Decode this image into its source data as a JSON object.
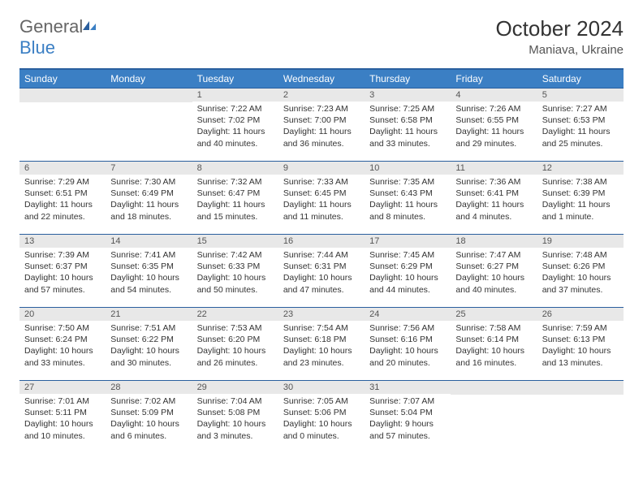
{
  "brand": {
    "part1": "General",
    "part2": "Blue"
  },
  "title": "October 2024",
  "location": "Maniava, Ukraine",
  "colors": {
    "header_bg": "#3b7fc4",
    "header_border": "#2a5f9e",
    "daynum_bg": "#e8e8e8",
    "text": "#333333",
    "muted": "#555555"
  },
  "weekdays": [
    "Sunday",
    "Monday",
    "Tuesday",
    "Wednesday",
    "Thursday",
    "Friday",
    "Saturday"
  ],
  "weeks": [
    [
      null,
      null,
      {
        "n": "1",
        "sr": "7:22 AM",
        "ss": "7:02 PM",
        "dl": "11 hours and 40 minutes."
      },
      {
        "n": "2",
        "sr": "7:23 AM",
        "ss": "7:00 PM",
        "dl": "11 hours and 36 minutes."
      },
      {
        "n": "3",
        "sr": "7:25 AM",
        "ss": "6:58 PM",
        "dl": "11 hours and 33 minutes."
      },
      {
        "n": "4",
        "sr": "7:26 AM",
        "ss": "6:55 PM",
        "dl": "11 hours and 29 minutes."
      },
      {
        "n": "5",
        "sr": "7:27 AM",
        "ss": "6:53 PM",
        "dl": "11 hours and 25 minutes."
      }
    ],
    [
      {
        "n": "6",
        "sr": "7:29 AM",
        "ss": "6:51 PM",
        "dl": "11 hours and 22 minutes."
      },
      {
        "n": "7",
        "sr": "7:30 AM",
        "ss": "6:49 PM",
        "dl": "11 hours and 18 minutes."
      },
      {
        "n": "8",
        "sr": "7:32 AM",
        "ss": "6:47 PM",
        "dl": "11 hours and 15 minutes."
      },
      {
        "n": "9",
        "sr": "7:33 AM",
        "ss": "6:45 PM",
        "dl": "11 hours and 11 minutes."
      },
      {
        "n": "10",
        "sr": "7:35 AM",
        "ss": "6:43 PM",
        "dl": "11 hours and 8 minutes."
      },
      {
        "n": "11",
        "sr": "7:36 AM",
        "ss": "6:41 PM",
        "dl": "11 hours and 4 minutes."
      },
      {
        "n": "12",
        "sr": "7:38 AM",
        "ss": "6:39 PM",
        "dl": "11 hours and 1 minute."
      }
    ],
    [
      {
        "n": "13",
        "sr": "7:39 AM",
        "ss": "6:37 PM",
        "dl": "10 hours and 57 minutes."
      },
      {
        "n": "14",
        "sr": "7:41 AM",
        "ss": "6:35 PM",
        "dl": "10 hours and 54 minutes."
      },
      {
        "n": "15",
        "sr": "7:42 AM",
        "ss": "6:33 PM",
        "dl": "10 hours and 50 minutes."
      },
      {
        "n": "16",
        "sr": "7:44 AM",
        "ss": "6:31 PM",
        "dl": "10 hours and 47 minutes."
      },
      {
        "n": "17",
        "sr": "7:45 AM",
        "ss": "6:29 PM",
        "dl": "10 hours and 44 minutes."
      },
      {
        "n": "18",
        "sr": "7:47 AM",
        "ss": "6:27 PM",
        "dl": "10 hours and 40 minutes."
      },
      {
        "n": "19",
        "sr": "7:48 AM",
        "ss": "6:26 PM",
        "dl": "10 hours and 37 minutes."
      }
    ],
    [
      {
        "n": "20",
        "sr": "7:50 AM",
        "ss": "6:24 PM",
        "dl": "10 hours and 33 minutes."
      },
      {
        "n": "21",
        "sr": "7:51 AM",
        "ss": "6:22 PM",
        "dl": "10 hours and 30 minutes."
      },
      {
        "n": "22",
        "sr": "7:53 AM",
        "ss": "6:20 PM",
        "dl": "10 hours and 26 minutes."
      },
      {
        "n": "23",
        "sr": "7:54 AM",
        "ss": "6:18 PM",
        "dl": "10 hours and 23 minutes."
      },
      {
        "n": "24",
        "sr": "7:56 AM",
        "ss": "6:16 PM",
        "dl": "10 hours and 20 minutes."
      },
      {
        "n": "25",
        "sr": "7:58 AM",
        "ss": "6:14 PM",
        "dl": "10 hours and 16 minutes."
      },
      {
        "n": "26",
        "sr": "7:59 AM",
        "ss": "6:13 PM",
        "dl": "10 hours and 13 minutes."
      }
    ],
    [
      {
        "n": "27",
        "sr": "7:01 AM",
        "ss": "5:11 PM",
        "dl": "10 hours and 10 minutes."
      },
      {
        "n": "28",
        "sr": "7:02 AM",
        "ss": "5:09 PM",
        "dl": "10 hours and 6 minutes."
      },
      {
        "n": "29",
        "sr": "7:04 AM",
        "ss": "5:08 PM",
        "dl": "10 hours and 3 minutes."
      },
      {
        "n": "30",
        "sr": "7:05 AM",
        "ss": "5:06 PM",
        "dl": "10 hours and 0 minutes."
      },
      {
        "n": "31",
        "sr": "7:07 AM",
        "ss": "5:04 PM",
        "dl": "9 hours and 57 minutes."
      },
      null,
      null
    ]
  ],
  "labels": {
    "sunrise": "Sunrise: ",
    "sunset": "Sunset: ",
    "daylight": "Daylight: "
  }
}
